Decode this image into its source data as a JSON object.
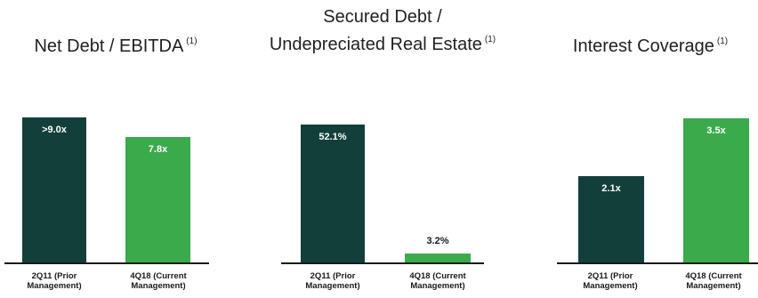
{
  "colors": {
    "prior": "#133f3a",
    "current": "#3aaa4b",
    "axis": "#1a1a1a"
  },
  "chart_data": [
    {
      "type": "bar",
      "title": "Net Debt / EBITDA",
      "footnote": "(1)",
      "categories": [
        "2Q11 (Prior Management)",
        "4Q18 (Current Management)"
      ],
      "values": [
        9.0,
        7.8
      ],
      "data_labels": [
        ">9.0x",
        "7.8x"
      ],
      "ylim": [
        0,
        9.0
      ]
    },
    {
      "type": "bar",
      "title_line1": "Secured Debt /",
      "title_line2": "Undepreciated Real Estate",
      "footnote": "(1)",
      "categories": [
        "2Q11 (Prior Management)",
        "4Q18 (Current Management)"
      ],
      "values": [
        52.1,
        3.2
      ],
      "data_labels": [
        "52.1%",
        "3.2%"
      ],
      "ylim": [
        0,
        52.1
      ]
    },
    {
      "type": "bar",
      "title": "Interest Coverage",
      "footnote": "(1)",
      "categories": [
        "2Q11 (Prior Management)",
        "4Q18 (Current Management)"
      ],
      "values": [
        2.1,
        3.5
      ],
      "data_labels": [
        "2.1x",
        "3.5x"
      ],
      "ylim": [
        0,
        3.5
      ]
    }
  ]
}
